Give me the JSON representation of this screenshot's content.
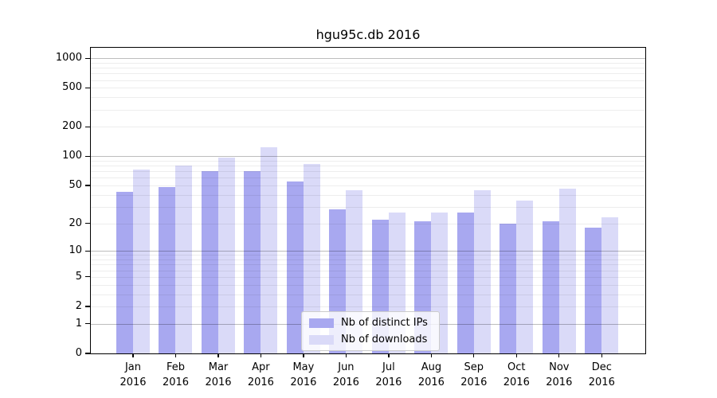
{
  "chart_data": {
    "type": "bar",
    "title": "hgu95c.db 2016",
    "categories": [
      "Jan",
      "Feb",
      "Mar",
      "Apr",
      "May",
      "Jun",
      "Jul",
      "Aug",
      "Sep",
      "Oct",
      "Nov",
      "Dec"
    ],
    "category_year": "2016",
    "series": [
      {
        "name": "Nb of distinct IPs",
        "color": "#a8a8f0",
        "values": [
          43,
          48,
          70,
          71,
          55,
          28,
          22,
          21,
          26,
          20,
          21,
          18
        ]
      },
      {
        "name": "Nb of downloads",
        "color": "#dadaf8",
        "values": [
          73,
          81,
          97,
          123,
          84,
          45,
          26,
          26,
          45,
          35,
          46,
          23
        ]
      }
    ],
    "xlabel": "",
    "ylabel": "",
    "yscale": "log10(1+x)",
    "y_tick_labels": [
      0,
      1,
      2,
      5,
      10,
      20,
      50,
      100,
      200,
      500,
      1000
    ],
    "ylim": [
      0,
      1280
    ],
    "grid": "on",
    "legend_position": "bottom-center-inside"
  }
}
